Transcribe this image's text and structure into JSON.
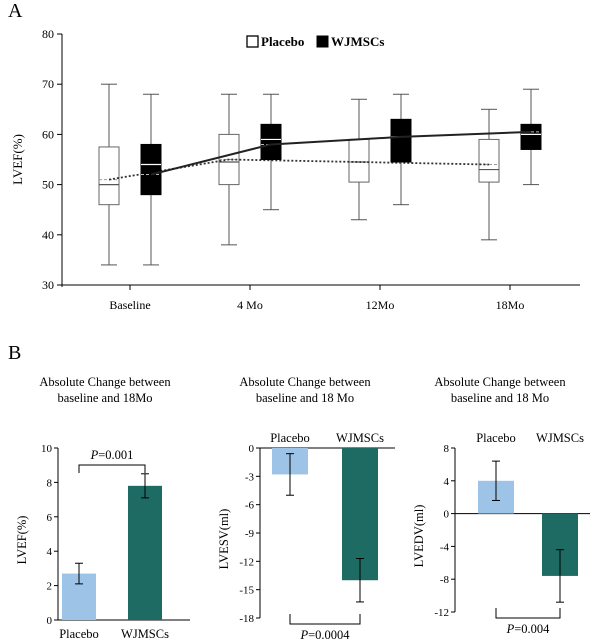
{
  "panel_a": {
    "letter": "A",
    "chart_data": {
      "type": "box",
      "ylabel": "LVEF(%)",
      "ylim": [
        30,
        80
      ],
      "yticks": [
        30,
        40,
        50,
        60,
        70,
        80
      ],
      "categories": [
        "Baseline",
        "4 Mo",
        "12Mo",
        "18Mo"
      ],
      "legend": {
        "position": "top-center",
        "items": [
          "Placebo",
          "WJMSCs"
        ]
      },
      "series": [
        {
          "name": "Placebo",
          "fill": "#ffffff",
          "line_style": "dotted",
          "boxes": [
            {
              "min": 34,
              "q1": 46,
              "median": 50,
              "mean": 51,
              "q3": 57.5,
              "max": 70
            },
            {
              "min": 38,
              "q1": 50,
              "median": 54.5,
              "mean": 55,
              "q3": 60,
              "max": 68
            },
            {
              "min": 43,
              "q1": 50.5,
              "median": 54.5,
              "mean": 54.5,
              "q3": 59,
              "max": 67
            },
            {
              "min": 39,
              "q1": 50.5,
              "median": 53,
              "mean": 54,
              "q3": 59,
              "max": 65
            }
          ],
          "mean_line": [
            51,
            55,
            54.5,
            54
          ]
        },
        {
          "name": "WJMSCs",
          "fill": "#000000",
          "line_style": "solid",
          "boxes": [
            {
              "min": 34,
              "q1": 48,
              "median": 54,
              "mean": 52,
              "q3": 58,
              "max": 68
            },
            {
              "min": 45,
              "q1": 55,
              "median": 59,
              "mean": 58,
              "q3": 62,
              "max": 68
            },
            {
              "min": 46,
              "q1": 54.5,
              "median": 59.5,
              "mean": 59.5,
              "q3": 63,
              "max": 68
            },
            {
              "min": 50,
              "q1": 57,
              "median": 60,
              "mean": 60.5,
              "q3": 62,
              "max": 69
            }
          ],
          "mean_line": [
            52,
            58,
            59.5,
            60.5
          ]
        }
      ]
    }
  },
  "panel_b": {
    "letter": "B",
    "colors": {
      "placebo": "#9dc3e6",
      "wjmscs": "#1e6b63"
    },
    "chart_data": [
      {
        "type": "bar",
        "title_line1": "Absolute Change between",
        "title_line2": "baseline and 18Mo",
        "ylabel": "LVEF(%)",
        "ylim": [
          0,
          10
        ],
        "yticks": [
          0,
          2,
          4,
          6,
          8,
          10
        ],
        "categories": [
          "Placebo",
          "WJMSCs"
        ],
        "values": [
          2.7,
          7.8
        ],
        "errors": [
          0.6,
          0.7
        ],
        "pvalue": "=0.001",
        "p_italic": "P"
      },
      {
        "type": "bar",
        "title_line1": "Absolute Change between",
        "title_line2": "baseline and 18 Mo",
        "ylabel": "LVESV(ml)",
        "ylim": [
          -18,
          0
        ],
        "yticks": [
          0,
          -3,
          -6,
          -9,
          -12,
          -15,
          -18
        ],
        "categories": [
          "Placebo",
          "WJMSCs"
        ],
        "values": [
          -2.8,
          -14
        ],
        "errors": [
          2.2,
          2.3
        ],
        "pvalue": "=0.0004",
        "p_italic": "P"
      },
      {
        "type": "bar",
        "title_line1": "Absolute Change between",
        "title_line2": "baseline and 18 Mo",
        "ylabel": "LVEDV(ml)",
        "ylim": [
          -12,
          8
        ],
        "yticks": [
          8,
          4,
          0,
          -4,
          -8,
          -12
        ],
        "categories": [
          "Placebo",
          "WJMSCs"
        ],
        "values": [
          4,
          -7.6
        ],
        "errors": [
          2.4,
          3.2
        ],
        "pvalue": "=0.004",
        "p_italic": "P"
      }
    ]
  }
}
